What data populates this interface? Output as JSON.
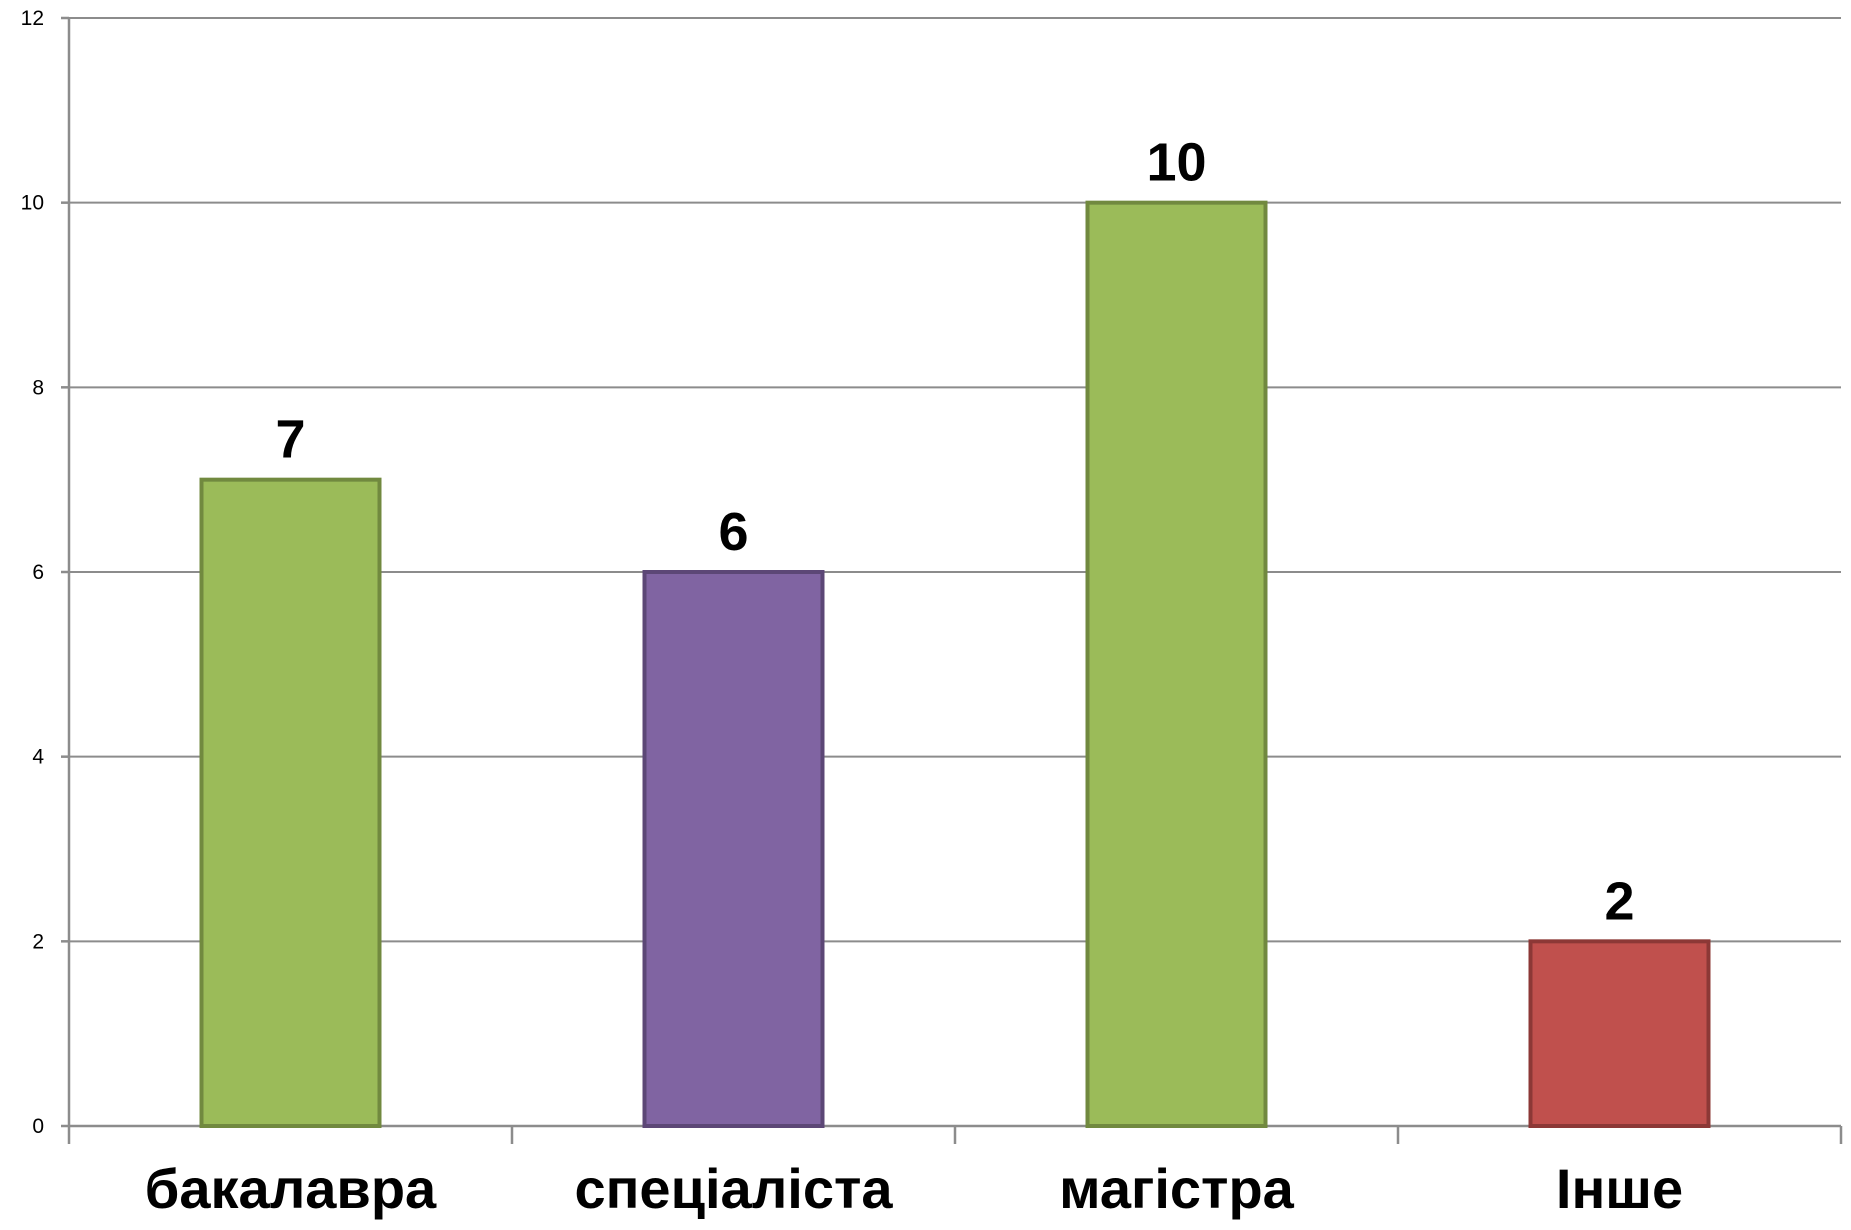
{
  "chart_data": {
    "type": "bar",
    "title": "",
    "xlabel": "",
    "ylabel": "",
    "categories": [
      "бакалавра",
      "спеціаліста",
      "магістра",
      "Інше"
    ],
    "values": [
      7,
      6,
      10,
      2
    ],
    "data_labels": [
      "7",
      "6",
      "10",
      "2"
    ],
    "bar_colors": [
      {
        "fill": "#9bbb59",
        "stroke": "#71893f"
      },
      {
        "fill": "#8064a2",
        "stroke": "#5c4776"
      },
      {
        "fill": "#9bbb59",
        "stroke": "#71893f"
      },
      {
        "fill": "#c0504d",
        "stroke": "#8c3836"
      }
    ],
    "ylim": [
      0,
      12
    ],
    "yticks": [
      0,
      2,
      4,
      6,
      8,
      10,
      12
    ],
    "grid": true,
    "legend": "none"
  }
}
